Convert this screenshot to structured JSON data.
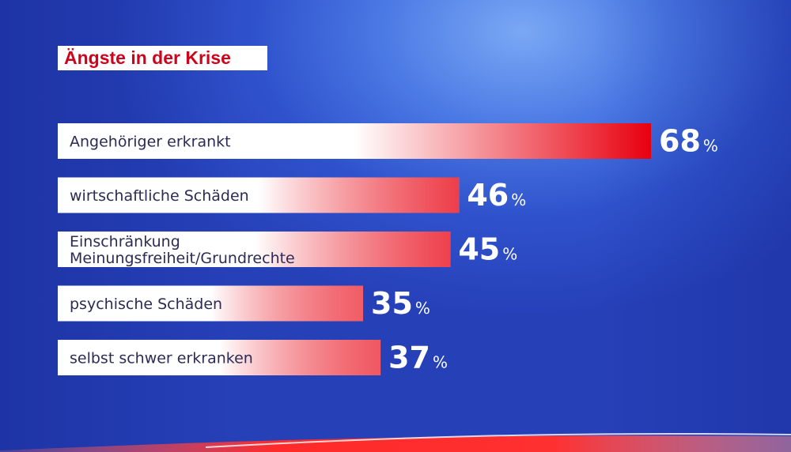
{
  "title": "Ängste in der Krise",
  "chart_data": {
    "type": "bar",
    "orientation": "horizontal",
    "title": "Ängste in der Krise",
    "unit": "%",
    "categories": [
      [
        "Angehöriger erkrankt"
      ],
      [
        "wirtschaftliche Schäden"
      ],
      [
        "Einschränkung",
        "Meinungsfreiheit/Grundrechte"
      ],
      [
        "psychische Schäden"
      ],
      [
        "selbst schwer erkranken"
      ]
    ],
    "values": [
      68,
      46,
      45,
      35,
      37
    ],
    "value_labels": [
      "68",
      "46",
      "45",
      "35",
      "37"
    ],
    "colors": {
      "bar_start": "#ffffff",
      "bar_end": "#e8000f",
      "title_text": "#d0021b"
    }
  }
}
